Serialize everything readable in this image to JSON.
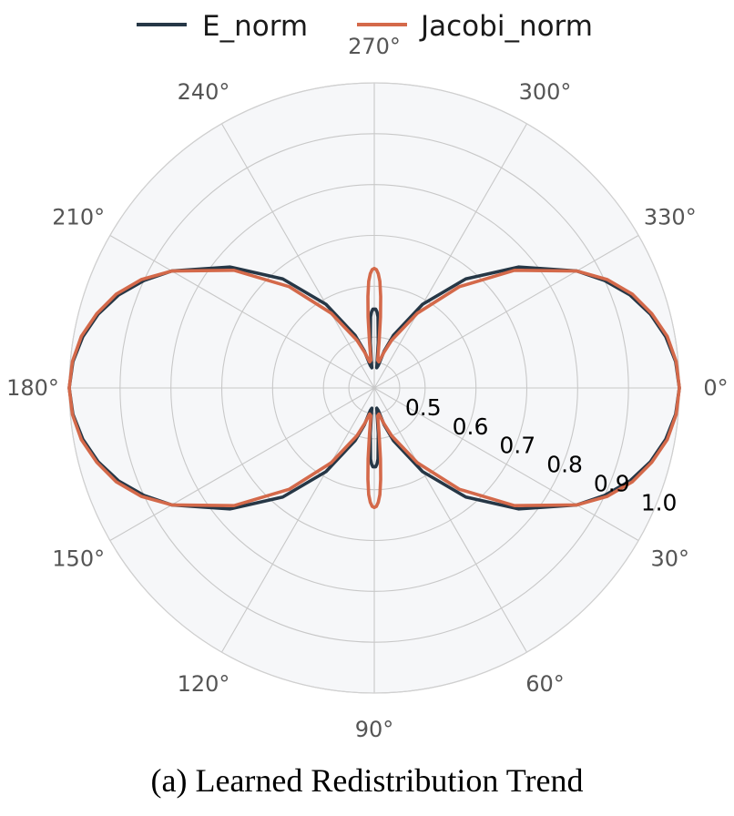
{
  "caption": "(a) Learned Redistribution Trend",
  "chart_data": {
    "type": "polar-line",
    "title": "",
    "theta_direction": "clockwise",
    "theta_zero": "right",
    "theta_ticks": [
      "0°",
      "30°",
      "60°",
      "90°",
      "120°",
      "150°",
      "180°",
      "210°",
      "240°",
      "270°",
      "300°",
      "330°"
    ],
    "theta_tick_values": [
      0,
      30,
      60,
      90,
      120,
      150,
      180,
      210,
      240,
      270,
      300,
      330
    ],
    "r_range": [
      0.4,
      1.0
    ],
    "r_ticks": [
      "0.5",
      "0.6",
      "0.7",
      "0.8",
      "0.9",
      "1.0"
    ],
    "r_tick_values": [
      0.5,
      0.6,
      0.7,
      0.8,
      0.9,
      1.0
    ],
    "r_label_angle": 22,
    "grid": true,
    "legend": {
      "placement": "top-center",
      "columns": 2
    },
    "background_color": "#f6f7f9",
    "grid_color": "#c8c8c8",
    "series": [
      {
        "name": "E_norm",
        "color": "#263746",
        "angles": [
          0,
          5,
          10,
          15,
          20,
          25,
          30,
          40,
          50,
          60,
          70,
          75,
          80,
          83,
          85,
          87,
          88,
          89,
          90,
          91,
          92,
          93,
          95,
          97,
          100,
          105,
          110,
          120,
          130,
          140,
          150,
          155,
          160,
          165,
          170,
          175,
          180,
          185,
          190,
          195,
          200,
          205,
          210,
          220,
          230,
          240,
          250,
          255,
          260,
          263,
          265,
          267,
          268,
          269,
          270,
          271,
          272,
          273,
          275,
          277,
          280,
          285,
          290,
          300,
          310,
          320,
          330,
          335,
          340,
          345,
          350,
          355,
          360
        ],
        "values": [
          1.0,
          0.995,
          0.982,
          0.962,
          0.935,
          0.9,
          0.86,
          0.77,
          0.68,
          0.59,
          0.51,
          0.475,
          0.445,
          0.44,
          0.49,
          0.54,
          0.55,
          0.555,
          0.555,
          0.555,
          0.55,
          0.54,
          0.49,
          0.44,
          0.445,
          0.475,
          0.51,
          0.59,
          0.68,
          0.77,
          0.86,
          0.9,
          0.935,
          0.962,
          0.982,
          0.995,
          1.0,
          0.995,
          0.982,
          0.962,
          0.935,
          0.9,
          0.86,
          0.77,
          0.68,
          0.59,
          0.51,
          0.475,
          0.445,
          0.44,
          0.49,
          0.54,
          0.55,
          0.555,
          0.555,
          0.555,
          0.55,
          0.54,
          0.49,
          0.44,
          0.445,
          0.475,
          0.51,
          0.59,
          0.68,
          0.77,
          0.86,
          0.9,
          0.935,
          0.962,
          0.982,
          0.995,
          1.0
        ]
      },
      {
        "name": "Jacobi_norm",
        "color": "#d4694a",
        "angles": [
          0,
          5,
          10,
          15,
          20,
          25,
          30,
          40,
          50,
          60,
          70,
          75,
          80,
          83,
          84,
          85,
          86,
          87,
          88,
          89,
          90,
          91,
          92,
          93,
          94,
          95,
          96,
          97,
          100,
          105,
          110,
          120,
          130,
          140,
          150,
          155,
          160,
          165,
          170,
          175,
          180,
          185,
          190,
          195,
          200,
          205,
          210,
          220,
          230,
          240,
          250,
          255,
          260,
          263,
          264,
          265,
          266,
          267,
          268,
          269,
          270,
          271,
          272,
          273,
          274,
          275,
          276,
          277,
          280,
          285,
          290,
          300,
          310,
          320,
          330,
          335,
          340,
          345,
          350,
          355,
          360
        ],
        "values": [
          1.0,
          0.996,
          0.985,
          0.965,
          0.94,
          0.905,
          0.86,
          0.76,
          0.66,
          0.57,
          0.5,
          0.472,
          0.452,
          0.455,
          0.49,
          0.54,
          0.58,
          0.61,
          0.625,
          0.633,
          0.635,
          0.633,
          0.625,
          0.61,
          0.58,
          0.54,
          0.49,
          0.455,
          0.452,
          0.472,
          0.5,
          0.57,
          0.66,
          0.76,
          0.86,
          0.905,
          0.94,
          0.965,
          0.985,
          0.996,
          1.0,
          0.996,
          0.985,
          0.965,
          0.94,
          0.905,
          0.86,
          0.76,
          0.66,
          0.57,
          0.5,
          0.472,
          0.452,
          0.455,
          0.49,
          0.54,
          0.58,
          0.61,
          0.625,
          0.633,
          0.635,
          0.633,
          0.625,
          0.61,
          0.58,
          0.54,
          0.49,
          0.455,
          0.452,
          0.472,
          0.5,
          0.57,
          0.66,
          0.76,
          0.86,
          0.905,
          0.94,
          0.965,
          0.985,
          0.996,
          1.0
        ]
      }
    ]
  }
}
